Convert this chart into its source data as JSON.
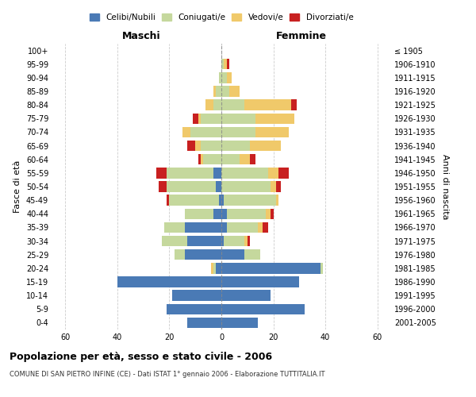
{
  "age_groups_bottom_to_top": [
    "0-4",
    "5-9",
    "10-14",
    "15-19",
    "20-24",
    "25-29",
    "30-34",
    "35-39",
    "40-44",
    "45-49",
    "50-54",
    "55-59",
    "60-64",
    "65-69",
    "70-74",
    "75-79",
    "80-84",
    "85-89",
    "90-94",
    "95-99",
    "100+"
  ],
  "birth_years_bottom_to_top": [
    "2001-2005",
    "1996-2000",
    "1991-1995",
    "1986-1990",
    "1981-1985",
    "1976-1980",
    "1971-1975",
    "1966-1970",
    "1961-1965",
    "1956-1960",
    "1951-1955",
    "1946-1950",
    "1941-1945",
    "1936-1940",
    "1931-1935",
    "1926-1930",
    "1921-1925",
    "1916-1920",
    "1911-1915",
    "1906-1910",
    "≤ 1905"
  ],
  "male": {
    "celibinubili": [
      13,
      21,
      19,
      40,
      2,
      14,
      13,
      14,
      3,
      1,
      2,
      3,
      0,
      0,
      0,
      0,
      0,
      0,
      0,
      0,
      0
    ],
    "coniugati": [
      0,
      0,
      0,
      0,
      1,
      4,
      10,
      8,
      11,
      19,
      19,
      18,
      7,
      8,
      12,
      8,
      3,
      2,
      1,
      0,
      0
    ],
    "vedovi": [
      0,
      0,
      0,
      0,
      1,
      0,
      0,
      0,
      0,
      0,
      0,
      0,
      1,
      2,
      3,
      1,
      3,
      1,
      0,
      0,
      0
    ],
    "divorziati": [
      0,
      0,
      0,
      0,
      0,
      0,
      0,
      0,
      0,
      1,
      3,
      4,
      1,
      3,
      0,
      2,
      0,
      0,
      0,
      0,
      0
    ]
  },
  "female": {
    "celibenubili": [
      14,
      32,
      19,
      30,
      38,
      9,
      1,
      2,
      2,
      1,
      0,
      0,
      0,
      0,
      0,
      0,
      0,
      0,
      0,
      0,
      0
    ],
    "coniugate": [
      0,
      0,
      0,
      0,
      1,
      6,
      8,
      12,
      15,
      20,
      19,
      18,
      7,
      11,
      13,
      13,
      9,
      3,
      2,
      1,
      0
    ],
    "vedove": [
      0,
      0,
      0,
      0,
      0,
      0,
      1,
      2,
      2,
      1,
      2,
      4,
      4,
      12,
      13,
      15,
      18,
      4,
      2,
      1,
      0
    ],
    "divorziate": [
      0,
      0,
      0,
      0,
      0,
      0,
      1,
      2,
      1,
      0,
      2,
      4,
      2,
      0,
      0,
      0,
      2,
      0,
      0,
      1,
      0
    ]
  },
  "colors": {
    "celibinubili": "#4a7ab5",
    "coniugati": "#c5d89d",
    "vedovi": "#f0c96a",
    "divorziati": "#c82020"
  },
  "title": "Popolazione per età, sesso e stato civile - 2006",
  "subtitle": "COMUNE DI SAN PIETRO INFINE (CE) - Dati ISTAT 1° gennaio 2006 - Elaborazione TUTTITALIA.IT",
  "xlim": 65,
  "xlabel_left": "Maschi",
  "xlabel_right": "Femmine",
  "ylabel_left": "Fasce di età",
  "ylabel_right": "Anni di nascita",
  "legend_labels": [
    "Celibi/Nubili",
    "Coniugati/e",
    "Vedovi/e",
    "Divorziati/e"
  ]
}
